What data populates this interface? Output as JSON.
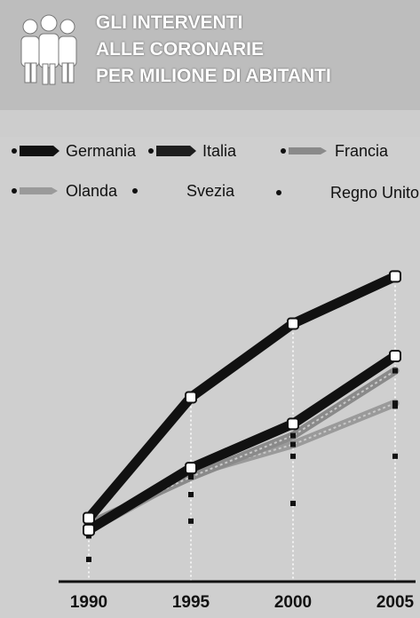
{
  "header": {
    "title_lines": [
      "GLI INTERVENTI",
      "ALLE CORONARIE",
      "PER MILIONE DI ABITANTI"
    ]
  },
  "colors": {
    "header_bg": "#bdbdbd",
    "germania": "#111111",
    "italia": "#1e1e1e",
    "francia": "#8a8a8a",
    "olanda": "#9a9a9a",
    "svezia": "#111111",
    "regno_unito": "#111111"
  },
  "icons": [
    "people-group-icon"
  ],
  "chart_data": {
    "type": "line",
    "title": "GLI INTERVENTI ALLE CORONARIE PER MILIONE DI ABITANTI",
    "x": [
      1990,
      1995,
      2000,
      2005
    ],
    "xlabel": "",
    "ylabel": "",
    "ylim": [
      0,
      100
    ],
    "grid": "vertical-dotted",
    "legend_position": "top",
    "series": [
      {
        "name": "Germania",
        "values": [
          17,
          58,
          83,
          99
        ],
        "style": "thick-black"
      },
      {
        "name": "Italia",
        "values": [
          13,
          34,
          49,
          72
        ],
        "style": "thick-black"
      },
      {
        "name": "Francia",
        "values": [
          15,
          31,
          45,
          67
        ],
        "style": "gray-hatched"
      },
      {
        "name": "Olanda",
        "values": [
          13,
          32,
          42,
          56
        ],
        "style": "gray-hatched"
      },
      {
        "name": "Svezia",
        "values": [
          11,
          25,
          38,
          55
        ],
        "style": "dots"
      },
      {
        "name": "Regno Unito",
        "values": [
          3,
          16,
          22,
          38
        ],
        "style": "dots"
      }
    ]
  }
}
